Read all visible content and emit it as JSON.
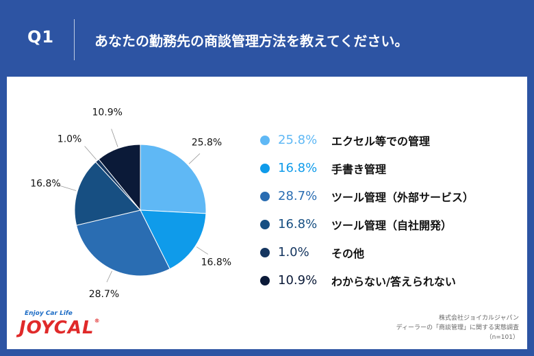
{
  "header": {
    "question_number": "Q1",
    "question_text": "あなたの勤務先の商談管理方法を教えてください。"
  },
  "chart_data": {
    "type": "pie",
    "slices": [
      {
        "label": "エクセル等での管理",
        "value": 25.8,
        "display": "25.8%",
        "color": "#5fb8f5"
      },
      {
        "label": "手書き管理",
        "value": 16.8,
        "display": "16.8%",
        "color": "#0f9bea"
      },
      {
        "label": "ツール管理（外部サービス）",
        "value": 28.7,
        "display": "28.7%",
        "color": "#2a6db2"
      },
      {
        "label": "ツール管理（自社開発）",
        "value": 16.8,
        "display": "16.8%",
        "color": "#174f82"
      },
      {
        "label": "その他",
        "value": 1.0,
        "display": "1.0%",
        "color": "#153660"
      },
      {
        "label": "わからない/答えられない",
        "value": 10.9,
        "display": "10.9%",
        "color": "#0b1a38"
      }
    ]
  },
  "logo": {
    "tagline": "Enjoy Car Life",
    "brand": "JOYCAL",
    "registered": "®"
  },
  "source": {
    "company": "株式会社ジョイカルジャパン",
    "survey": "ディーラーの「商談管理」に関する実態調査",
    "sample": "（n=101）"
  }
}
